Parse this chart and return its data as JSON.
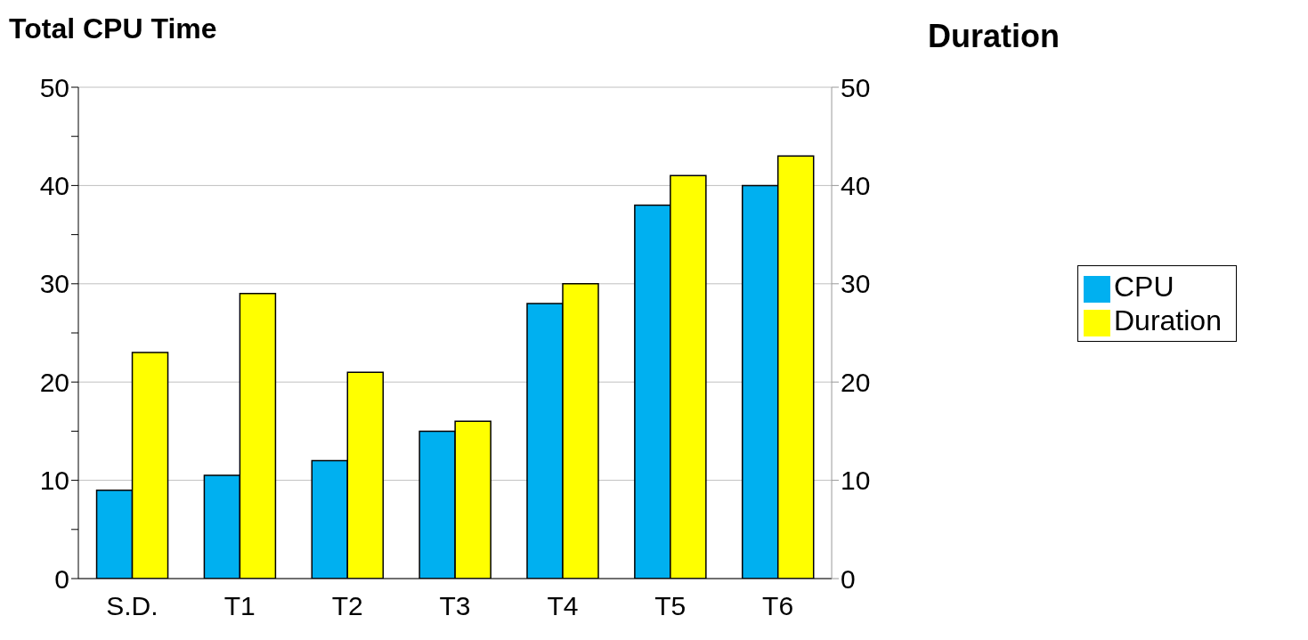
{
  "chart_data": {
    "type": "bar",
    "ylabel": "Total CPU Time",
    "y2label": "Duration",
    "categories": [
      "S.D.",
      "T1",
      "T2",
      "T3",
      "T4",
      "T5",
      "T6"
    ],
    "series": [
      {
        "name": "CPU",
        "color": "#00b0f0",
        "values": [
          9,
          10.5,
          12,
          15,
          28,
          38,
          40
        ]
      },
      {
        "name": "Duration",
        "color": "#ffff00",
        "axis": "y2",
        "values": [
          23,
          29,
          21,
          16,
          30,
          41,
          43
        ]
      }
    ],
    "ylim": [
      0,
      50
    ],
    "yticks": [
      0,
      {
        "value": 5,
        "label": null
      },
      10,
      {
        "value": 15,
        "label": null
      },
      20,
      {
        "value": 25,
        "label": null
      },
      30,
      {
        "value": 35,
        "label": null
      },
      40,
      {
        "value": 45,
        "label": null
      },
      50
    ],
    "y2lim": [
      0,
      50
    ],
    "y2ticks": [
      0,
      10,
      20,
      30,
      40,
      50
    ],
    "grid": "y",
    "legend": "right"
  }
}
